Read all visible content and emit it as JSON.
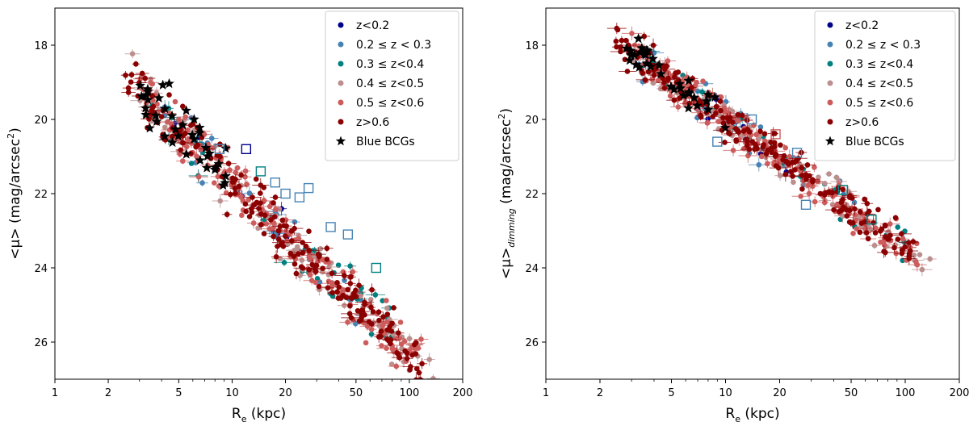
{
  "chart_data": [
    {
      "type": "scatter",
      "id": "left",
      "title": "",
      "xlabel": "R",
      "xlabel_sub": "e",
      "xlabel_suffix": " (kpc)",
      "ylabel": "<μ> (mag/arcsec",
      "ylabel_sup": "2",
      "ylabel_suffix": ")",
      "xscale": "log",
      "xlim": [
        1,
        200
      ],
      "ylim": [
        27,
        17
      ],
      "xticks": [
        1,
        2,
        5,
        10,
        20,
        50,
        100,
        200
      ],
      "yticks": [
        18,
        20,
        22,
        24,
        26
      ],
      "relation": {
        "slope": 4.6,
        "intercept": 17.1,
        "scatter": 0.5
      },
      "legend_position": "top-right",
      "series": [
        {
          "name": "z<0.2",
          "color": "#00008b",
          "marker": "circle",
          "x_range": [
            4,
            30
          ],
          "count": 8,
          "seed": 11
        },
        {
          "name": "0.2 ≤ z < 0.3",
          "color": "#4682b4",
          "marker": "circle",
          "x_range": [
            4,
            60
          ],
          "count": 30,
          "seed": 12
        },
        {
          "name": "0.3 ≤ z<0.4",
          "color": "#008080",
          "marker": "circle",
          "x_range": [
            3.5,
            80
          ],
          "count": 45,
          "seed": 13
        },
        {
          "name": "0.4 ≤ z<0.5",
          "color": "#bc8f8f",
          "marker": "circle",
          "x_range": [
            2.5,
            140
          ],
          "count": 90,
          "seed": 14
        },
        {
          "name": "0.5 ≤ z<0.6",
          "color": "#cd5c5c",
          "marker": "circle",
          "x_range": [
            3,
            120
          ],
          "count": 170,
          "seed": 15
        },
        {
          "name": "z>0.6",
          "color": "#8b0000",
          "marker": "circle",
          "x_range": [
            2.5,
            120
          ],
          "count": 200,
          "seed": 16
        },
        {
          "name": "Blue BCGs",
          "color": "#000000",
          "marker": "star",
          "x_range": [
            2.7,
            10
          ],
          "count": 40,
          "seed": 17
        }
      ],
      "highlighted": {
        "marker": "open-square",
        "points": [
          {
            "x": 8.5,
            "y": 20.8,
            "color": "#4682b4"
          },
          {
            "x": 12,
            "y": 20.8,
            "color": "#00008b"
          },
          {
            "x": 14.5,
            "y": 21.4,
            "color": "#008080"
          },
          {
            "x": 17.5,
            "y": 21.7,
            "color": "#4682b4"
          },
          {
            "x": 20,
            "y": 22.0,
            "color": "#4682b4"
          },
          {
            "x": 24,
            "y": 22.1,
            "color": "#4682b4"
          },
          {
            "x": 27,
            "y": 21.85,
            "color": "#4682b4"
          },
          {
            "x": 36,
            "y": 22.9,
            "color": "#4682b4"
          },
          {
            "x": 45,
            "y": 23.1,
            "color": "#4682b4"
          },
          {
            "x": 65,
            "y": 24.0,
            "color": "#008080"
          }
        ]
      }
    },
    {
      "type": "scatter",
      "id": "right",
      "title": "",
      "xlabel": "R",
      "xlabel_sub": "e",
      "xlabel_suffix": " (kpc)",
      "ylabel": "<μ>",
      "ylabel_sub": "dimming",
      "ylabel_mid": " (mag/arcsec",
      "ylabel_sup": "2",
      "ylabel_suffix": ")",
      "xscale": "log",
      "xlim": [
        1,
        200
      ],
      "ylim": [
        27,
        17
      ],
      "xticks": [
        1,
        2,
        5,
        10,
        20,
        50,
        100,
        200
      ],
      "yticks": [
        18,
        20,
        22,
        24,
        26
      ],
      "relation": {
        "slope": 3.5,
        "intercept": 16.5,
        "scatter": 0.38
      },
      "legend_position": "top-right",
      "series": [
        {
          "name": "z<0.2",
          "color": "#00008b",
          "marker": "circle",
          "x_range": [
            6,
            30
          ],
          "count": 8,
          "seed": 21
        },
        {
          "name": "0.2 ≤ z < 0.3",
          "color": "#4682b4",
          "marker": "circle",
          "x_range": [
            3,
            70
          ],
          "count": 35,
          "seed": 22
        },
        {
          "name": "0.3 ≤ z<0.4",
          "color": "#008080",
          "marker": "circle",
          "x_range": [
            3,
            100
          ],
          "count": 45,
          "seed": 23
        },
        {
          "name": "0.4 ≤ z<0.5",
          "color": "#bc8f8f",
          "marker": "circle",
          "x_range": [
            3,
            140
          ],
          "count": 90,
          "seed": 24
        },
        {
          "name": "0.5 ≤ z<0.6",
          "color": "#cd5c5c",
          "marker": "circle",
          "x_range": [
            3,
            120
          ],
          "count": 170,
          "seed": 25
        },
        {
          "name": "z>0.6",
          "color": "#8b0000",
          "marker": "circle",
          "x_range": [
            2.4,
            120
          ],
          "count": 200,
          "seed": 26
        },
        {
          "name": "Blue BCGs",
          "color": "#000000",
          "marker": "star",
          "x_range": [
            2.8,
            10
          ],
          "count": 35,
          "seed": 27
        }
      ],
      "highlighted": {
        "marker": "open-square",
        "points": [
          {
            "x": 9,
            "y": 20.6,
            "color": "#4682b4"
          },
          {
            "x": 14,
            "y": 20.0,
            "color": "#4682b4"
          },
          {
            "x": 19,
            "y": 20.4,
            "color": "#cd5c5c"
          },
          {
            "x": 25,
            "y": 20.9,
            "color": "#4682b4"
          },
          {
            "x": 28,
            "y": 22.3,
            "color": "#4682b4"
          },
          {
            "x": 45,
            "y": 21.9,
            "color": "#008080"
          },
          {
            "x": 65,
            "y": 22.7,
            "color": "#008080"
          }
        ]
      }
    }
  ]
}
